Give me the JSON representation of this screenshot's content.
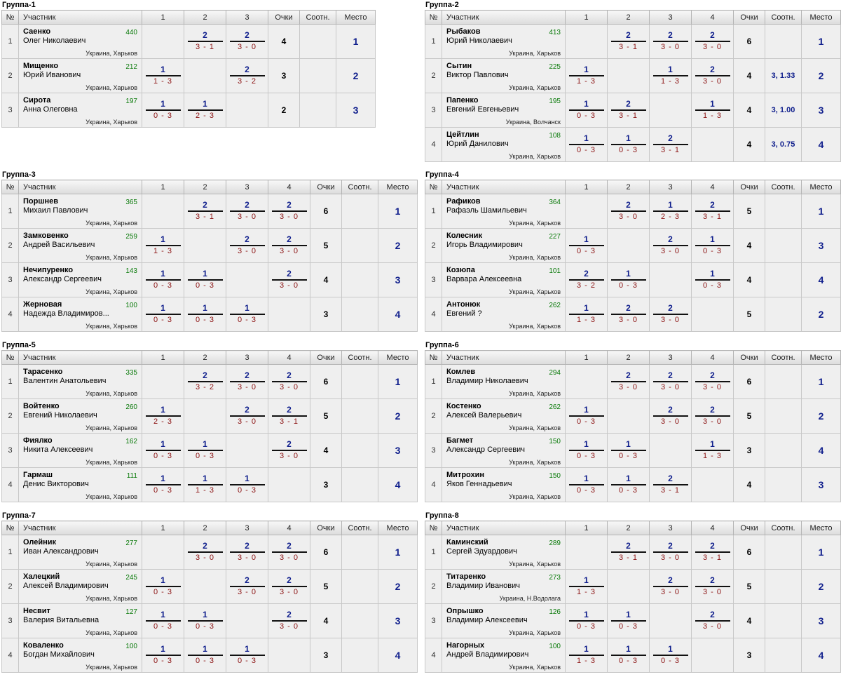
{
  "headers": {
    "num": "№",
    "participant": "Участник",
    "points": "Очки",
    "sootn": "Соотн.",
    "place": "Место"
  },
  "groups": [
    {
      "title": "Группа-1",
      "players": [
        {
          "last": "Саенко",
          "first": "Олег Николаевич",
          "rating": "440",
          "city": "Украина, Харьков",
          "results": [
            null,
            {
              "p": "2",
              "s": "3 - 1"
            },
            {
              "p": "2",
              "s": "3 - 0"
            }
          ],
          "points": "4",
          "sootn": "",
          "place": "1"
        },
        {
          "last": "Мищенко",
          "first": "Юрий Иванович",
          "rating": "212",
          "city": "Украина, Харьков",
          "results": [
            {
              "p": "1",
              "s": "1 - 3"
            },
            null,
            {
              "p": "2",
              "s": "3 - 2"
            }
          ],
          "points": "3",
          "sootn": "",
          "place": "2"
        },
        {
          "last": "Сирота",
          "first": "Анна Олеговна",
          "rating": "197",
          "city": "Украина, Харьков",
          "results": [
            {
              "p": "1",
              "s": "0 - 3"
            },
            {
              "p": "1",
              "s": "2 - 3"
            },
            null
          ],
          "points": "2",
          "sootn": "",
          "place": "3"
        }
      ]
    },
    {
      "title": "Группа-2",
      "players": [
        {
          "last": "Рыбаков",
          "first": "Юрий Николаевич",
          "rating": "413",
          "city": "Украина, Харьков",
          "results": [
            null,
            {
              "p": "2",
              "s": "3 - 1"
            },
            {
              "p": "2",
              "s": "3 - 0"
            },
            {
              "p": "2",
              "s": "3 - 0"
            }
          ],
          "points": "6",
          "sootn": "",
          "place": "1"
        },
        {
          "last": "Сытин",
          "first": "Виктор Павлович",
          "rating": "225",
          "city": "Украина, Харьков",
          "results": [
            {
              "p": "1",
              "s": "1 - 3"
            },
            null,
            {
              "p": "1",
              "s": "1 - 3"
            },
            {
              "p": "2",
              "s": "3 - 0"
            }
          ],
          "points": "4",
          "sootn": "3, 1.33",
          "place": "2"
        },
        {
          "last": "Папенко",
          "first": "Евгений Евгеньевич",
          "rating": "195",
          "city": "Украина, Волчанск",
          "results": [
            {
              "p": "1",
              "s": "0 - 3"
            },
            {
              "p": "2",
              "s": "3 - 1"
            },
            null,
            {
              "p": "1",
              "s": "1 - 3"
            }
          ],
          "points": "4",
          "sootn": "3, 1.00",
          "place": "3"
        },
        {
          "last": "Цейтлин",
          "first": "Юрий Данилович",
          "rating": "108",
          "city": "Украина, Харьков",
          "results": [
            {
              "p": "1",
              "s": "0 - 3"
            },
            {
              "p": "1",
              "s": "0 - 3"
            },
            {
              "p": "2",
              "s": "3 - 1"
            },
            null
          ],
          "points": "4",
          "sootn": "3, 0.75",
          "place": "4"
        }
      ]
    },
    {
      "title": "Группа-3",
      "players": [
        {
          "last": "Поршнев",
          "first": "Михаил Павлович",
          "rating": "365",
          "city": "Украина, Харьков",
          "results": [
            null,
            {
              "p": "2",
              "s": "3 - 1"
            },
            {
              "p": "2",
              "s": "3 - 0"
            },
            {
              "p": "2",
              "s": "3 - 0"
            }
          ],
          "points": "6",
          "sootn": "",
          "place": "1"
        },
        {
          "last": "Замковенко",
          "first": "Андрей Васильевич",
          "rating": "259",
          "city": "Украина, Харьков",
          "results": [
            {
              "p": "1",
              "s": "1 - 3"
            },
            null,
            {
              "p": "2",
              "s": "3 - 0"
            },
            {
              "p": "2",
              "s": "3 - 0"
            }
          ],
          "points": "5",
          "sootn": "",
          "place": "2"
        },
        {
          "last": "Нечипуренко",
          "first": "Александр Сергеевич",
          "rating": "143",
          "city": "Украина, Харьков",
          "results": [
            {
              "p": "1",
              "s": "0 - 3"
            },
            {
              "p": "1",
              "s": "0 - 3"
            },
            null,
            {
              "p": "2",
              "s": "3 - 0"
            }
          ],
          "points": "4",
          "sootn": "",
          "place": "3"
        },
        {
          "last": "Жерновая",
          "first": "Надежда Владимиров...",
          "rating": "100",
          "city": "Украина, Харьков",
          "results": [
            {
              "p": "1",
              "s": "0 - 3"
            },
            {
              "p": "1",
              "s": "0 - 3"
            },
            {
              "p": "1",
              "s": "0 - 3"
            },
            null
          ],
          "points": "3",
          "sootn": "",
          "place": "4"
        }
      ]
    },
    {
      "title": "Группа-4",
      "players": [
        {
          "last": "Рафиков",
          "first": "Рафаэль Шамильевич",
          "rating": "364",
          "city": "Украина, Харьков",
          "results": [
            null,
            {
              "p": "2",
              "s": "3 - 0"
            },
            {
              "p": "1",
              "s": "2 - 3"
            },
            {
              "p": "2",
              "s": "3 - 1"
            }
          ],
          "points": "5",
          "sootn": "",
          "place": "1"
        },
        {
          "last": "Колесник",
          "first": "Игорь Владимирович",
          "rating": "227",
          "city": "Украина, Харьков",
          "results": [
            {
              "p": "1",
              "s": "0 - 3"
            },
            null,
            {
              "p": "2",
              "s": "3 - 0"
            },
            {
              "p": "1",
              "s": "0 - 3"
            }
          ],
          "points": "4",
          "sootn": "",
          "place": "3"
        },
        {
          "last": "Козюпа",
          "first": "Варвара Алексеевна",
          "rating": "101",
          "city": "Украина, Харьков",
          "results": [
            {
              "p": "2",
              "s": "3 - 2"
            },
            {
              "p": "1",
              "s": "0 - 3"
            },
            null,
            {
              "p": "1",
              "s": "0 - 3"
            }
          ],
          "points": "4",
          "sootn": "",
          "place": "4"
        },
        {
          "last": "Антонюк",
          "first": "Евгений ?",
          "rating": "262",
          "city": "Украина, Харьков",
          "results": [
            {
              "p": "1",
              "s": "1 - 3"
            },
            {
              "p": "2",
              "s": "3 - 0"
            },
            {
              "p": "2",
              "s": "3 - 0"
            },
            null
          ],
          "points": "5",
          "sootn": "",
          "place": "2"
        }
      ]
    },
    {
      "title": "Группа-5",
      "players": [
        {
          "last": "Тарасенко",
          "first": "Валентин Анатольевич",
          "rating": "335",
          "city": "Украина, Харьков",
          "results": [
            null,
            {
              "p": "2",
              "s": "3 - 2"
            },
            {
              "p": "2",
              "s": "3 - 0"
            },
            {
              "p": "2",
              "s": "3 - 0"
            }
          ],
          "points": "6",
          "sootn": "",
          "place": "1"
        },
        {
          "last": "Войтенко",
          "first": "Евгений Николаевич",
          "rating": "260",
          "city": "Украина, Харьков",
          "results": [
            {
              "p": "1",
              "s": "2 - 3"
            },
            null,
            {
              "p": "2",
              "s": "3 - 0"
            },
            {
              "p": "2",
              "s": "3 - 1"
            }
          ],
          "points": "5",
          "sootn": "",
          "place": "2"
        },
        {
          "last": "Фиялко",
          "first": "Никита Алексеевич",
          "rating": "162",
          "city": "Украина, Харьков",
          "results": [
            {
              "p": "1",
              "s": "0 - 3"
            },
            {
              "p": "1",
              "s": "0 - 3"
            },
            null,
            {
              "p": "2",
              "s": "3 - 0"
            }
          ],
          "points": "4",
          "sootn": "",
          "place": "3"
        },
        {
          "last": "Гармаш",
          "first": "Денис Викторович",
          "rating": "111",
          "city": "Украина, Харьков",
          "results": [
            {
              "p": "1",
              "s": "0 - 3"
            },
            {
              "p": "1",
              "s": "1 - 3"
            },
            {
              "p": "1",
              "s": "0 - 3"
            },
            null
          ],
          "points": "3",
          "sootn": "",
          "place": "4"
        }
      ]
    },
    {
      "title": "Группа-6",
      "players": [
        {
          "last": "Комлев",
          "first": "Владимир Николаевич",
          "rating": "294",
          "city": "Украина, Харьков",
          "results": [
            null,
            {
              "p": "2",
              "s": "3 - 0"
            },
            {
              "p": "2",
              "s": "3 - 0"
            },
            {
              "p": "2",
              "s": "3 - 0"
            }
          ],
          "points": "6",
          "sootn": "",
          "place": "1"
        },
        {
          "last": "Костенко",
          "first": "Алексей Валерьевич",
          "rating": "262",
          "city": "Украина, Харьков",
          "results": [
            {
              "p": "1",
              "s": "0 - 3"
            },
            null,
            {
              "p": "2",
              "s": "3 - 0"
            },
            {
              "p": "2",
              "s": "3 - 0"
            }
          ],
          "points": "5",
          "sootn": "",
          "place": "2"
        },
        {
          "last": "Багмет",
          "first": "Александр Сергеевич",
          "rating": "150",
          "city": "Украина, Харьков",
          "results": [
            {
              "p": "1",
              "s": "0 - 3"
            },
            {
              "p": "1",
              "s": "0 - 3"
            },
            null,
            {
              "p": "1",
              "s": "1 - 3"
            }
          ],
          "points": "3",
          "sootn": "",
          "place": "4"
        },
        {
          "last": "Митрохин",
          "first": "Яков Геннадьевич",
          "rating": "150",
          "city": "Украина, Харьков",
          "results": [
            {
              "p": "1",
              "s": "0 - 3"
            },
            {
              "p": "1",
              "s": "0 - 3"
            },
            {
              "p": "2",
              "s": "3 - 1"
            },
            null
          ],
          "points": "4",
          "sootn": "",
          "place": "3"
        }
      ]
    },
    {
      "title": "Группа-7",
      "players": [
        {
          "last": "Олейник",
          "first": "Иван Александрович",
          "rating": "277",
          "city": "Украина, Харьков",
          "results": [
            null,
            {
              "p": "2",
              "s": "3 - 0"
            },
            {
              "p": "2",
              "s": "3 - 0"
            },
            {
              "p": "2",
              "s": "3 - 0"
            }
          ],
          "points": "6",
          "sootn": "",
          "place": "1"
        },
        {
          "last": "Халецкий",
          "first": "Алексей Владимирович",
          "rating": "245",
          "city": "Украина, Харьков",
          "results": [
            {
              "p": "1",
              "s": "0 - 3"
            },
            null,
            {
              "p": "2",
              "s": "3 - 0"
            },
            {
              "p": "2",
              "s": "3 - 0"
            }
          ],
          "points": "5",
          "sootn": "",
          "place": "2"
        },
        {
          "last": "Несвит",
          "first": "Валерия Витальевна",
          "rating": "127",
          "city": "Украина, Харьков",
          "results": [
            {
              "p": "1",
              "s": "0 - 3"
            },
            {
              "p": "1",
              "s": "0 - 3"
            },
            null,
            {
              "p": "2",
              "s": "3 - 0"
            }
          ],
          "points": "4",
          "sootn": "",
          "place": "3"
        },
        {
          "last": "Коваленко",
          "first": "Богдан Михайлович",
          "rating": "100",
          "city": "Украина, Харьков",
          "results": [
            {
              "p": "1",
              "s": "0 - 3"
            },
            {
              "p": "1",
              "s": "0 - 3"
            },
            {
              "p": "1",
              "s": "0 - 3"
            },
            null
          ],
          "points": "3",
          "sootn": "",
          "place": "4"
        }
      ]
    },
    {
      "title": "Группа-8",
      "players": [
        {
          "last": "Каминский",
          "first": "Сергей Эдуардович",
          "rating": "289",
          "city": "Украина, Харьков",
          "results": [
            null,
            {
              "p": "2",
              "s": "3 - 1"
            },
            {
              "p": "2",
              "s": "3 - 0"
            },
            {
              "p": "2",
              "s": "3 - 1"
            }
          ],
          "points": "6",
          "sootn": "",
          "place": "1"
        },
        {
          "last": "Титаренко",
          "first": "Владимир Иванович",
          "rating": "273",
          "city": "Украина, Н.Водолага",
          "results": [
            {
              "p": "1",
              "s": "1 - 3"
            },
            null,
            {
              "p": "2",
              "s": "3 - 0"
            },
            {
              "p": "2",
              "s": "3 - 0"
            }
          ],
          "points": "5",
          "sootn": "",
          "place": "2"
        },
        {
          "last": "Опрышко",
          "first": "Владимир Алексеевич",
          "rating": "126",
          "city": "Украина, Харьков",
          "results": [
            {
              "p": "1",
              "s": "0 - 3"
            },
            {
              "p": "1",
              "s": "0 - 3"
            },
            null,
            {
              "p": "2",
              "s": "3 - 0"
            }
          ],
          "points": "4",
          "sootn": "",
          "place": "3"
        },
        {
          "last": "Нагорных",
          "first": "Андрей Владимирович",
          "rating": "100",
          "city": "Украина, Харьков",
          "results": [
            {
              "p": "1",
              "s": "1 - 3"
            },
            {
              "p": "1",
              "s": "0 - 3"
            },
            {
              "p": "1",
              "s": "0 - 3"
            },
            null
          ],
          "points": "3",
          "sootn": "",
          "place": "4"
        }
      ]
    }
  ]
}
